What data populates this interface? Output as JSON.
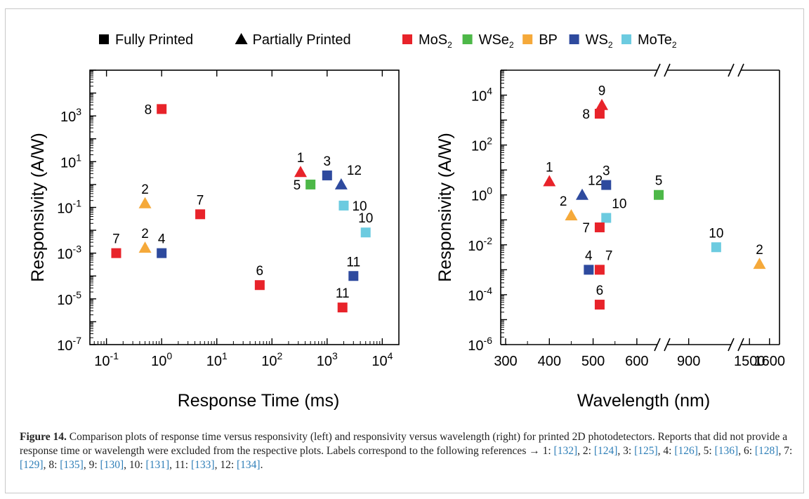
{
  "legend": {
    "items": [
      {
        "label": "Fully Printed",
        "shape": "square",
        "color": "#000000"
      },
      {
        "label": "Partially Printed",
        "shape": "triangle",
        "color": "#000000"
      },
      {
        "label": "MoS",
        "sub": "2",
        "shape": "square",
        "color": "#e8232a"
      },
      {
        "label": "WSe",
        "sub": "2",
        "shape": "square",
        "color": "#4db848"
      },
      {
        "label": "BP",
        "sub": "",
        "shape": "square",
        "color": "#f5a93a"
      },
      {
        "label": "WS",
        "sub": "2",
        "shape": "square",
        "color": "#2e4a9e"
      },
      {
        "label": "MoTe",
        "sub": "2",
        "shape": "square",
        "color": "#6ccbe0"
      }
    ]
  },
  "colors": {
    "MoS2": "#e8232a",
    "WSe2": "#4db848",
    "BP": "#f5a93a",
    "WS2": "#2e4a9e",
    "MoTe2": "#6ccbe0"
  },
  "chart_data": [
    {
      "type": "scatter",
      "xlabel": "Response Time (ms)",
      "ylabel": "Responsivity (A/W)",
      "xscale": "log",
      "yscale": "log",
      "xlim": [
        0.05,
        20000
      ],
      "ylim": [
        1e-07,
        100000.0
      ],
      "x_ticks": [
        {
          "v": 0.1,
          "base": "10",
          "exp": "-1"
        },
        {
          "v": 1,
          "base": "10",
          "exp": "0"
        },
        {
          "v": 10,
          "base": "10",
          "exp": "1"
        },
        {
          "v": 100,
          "base": "10",
          "exp": "2"
        },
        {
          "v": 1000,
          "base": "10",
          "exp": "3"
        },
        {
          "v": 10000,
          "base": "10",
          "exp": "4"
        }
      ],
      "y_ticks": [
        {
          "v": 1e-07,
          "base": "10",
          "exp": "-7"
        },
        {
          "v": 1e-05,
          "base": "10",
          "exp": "-5"
        },
        {
          "v": 0.001,
          "base": "10",
          "exp": "-3"
        },
        {
          "v": 0.1,
          "base": "10",
          "exp": "-1"
        },
        {
          "v": 10,
          "base": "10",
          "exp": "1"
        },
        {
          "v": 1000,
          "base": "10",
          "exp": "3"
        }
      ],
      "points": [
        {
          "x": 1,
          "y": 2000,
          "material": "MoS2",
          "marker": "square",
          "label": "8",
          "lpos": "left"
        },
        {
          "x": 0.15,
          "y": 0.001,
          "material": "MoS2",
          "marker": "square",
          "label": "7",
          "lpos": "above"
        },
        {
          "x": 0.5,
          "y": 0.15,
          "material": "BP",
          "marker": "triangle",
          "label": "2",
          "lpos": "above"
        },
        {
          "x": 0.5,
          "y": 0.0017,
          "material": "BP",
          "marker": "triangle",
          "label": "2",
          "lpos": "above"
        },
        {
          "x": 1,
          "y": 0.001,
          "material": "WS2",
          "marker": "square",
          "label": "4",
          "lpos": "above"
        },
        {
          "x": 5,
          "y": 0.05,
          "material": "MoS2",
          "marker": "square",
          "label": "7",
          "lpos": "above"
        },
        {
          "x": 60,
          "y": 4e-05,
          "material": "MoS2",
          "marker": "square",
          "label": "6",
          "lpos": "above"
        },
        {
          "x": 330,
          "y": 3.5,
          "material": "MoS2",
          "marker": "triangle",
          "label": "1",
          "lpos": "above"
        },
        {
          "x": 500,
          "y": 1,
          "material": "WSe2",
          "marker": "square",
          "label": "5",
          "lpos": "left"
        },
        {
          "x": 1000,
          "y": 2.5,
          "material": "WS2",
          "marker": "square",
          "label": "3",
          "lpos": "above"
        },
        {
          "x": 1800,
          "y": 1,
          "material": "WS2",
          "marker": "triangle",
          "label": "12",
          "lpos": "aboveright"
        },
        {
          "x": 2000,
          "y": 0.12,
          "material": "MoTe2",
          "marker": "square",
          "label": "10",
          "lpos": "right"
        },
        {
          "x": 5000,
          "y": 0.008,
          "material": "MoTe2",
          "marker": "square",
          "label": "10",
          "lpos": "above"
        },
        {
          "x": 3000,
          "y": 0.0001,
          "material": "WS2",
          "marker": "square",
          "label": "11",
          "lpos": "above"
        },
        {
          "x": 1900,
          "y": 4.2e-06,
          "material": "MoS2",
          "marker": "square",
          "label": "11",
          "lpos": "above"
        }
      ]
    },
    {
      "type": "scatter",
      "xlabel": "Wavelength (nm)",
      "ylabel": "Responsivity (A/W)",
      "xscale": "broken-linear",
      "yscale": "log",
      "ylim": [
        1e-06,
        100000.0
      ],
      "x_segments": [
        {
          "from": 300,
          "to": 650,
          "tick_values": [
            300,
            400,
            500,
            600
          ]
        },
        {
          "from": 850,
          "to": 1000,
          "tick_values": [
            900
          ]
        },
        {
          "from": 1450,
          "to": 1650,
          "tick_values": [
            1500,
            1600
          ]
        }
      ],
      "x_ticks": [
        "300",
        "400",
        "500",
        "600",
        "900",
        "1500",
        "1600"
      ],
      "y_ticks": [
        {
          "v": 1e-06,
          "base": "10",
          "exp": "-6"
        },
        {
          "v": 0.0001,
          "base": "10",
          "exp": "-4"
        },
        {
          "v": 0.01,
          "base": "10",
          "exp": "-2"
        },
        {
          "v": 1,
          "base": "10",
          "exp": "0"
        },
        {
          "v": 100,
          "base": "10",
          "exp": "2"
        },
        {
          "v": 10000,
          "base": "10",
          "exp": "4"
        }
      ],
      "points": [
        {
          "x": 400,
          "y": 3.5,
          "material": "MoS2",
          "marker": "triangle",
          "label": "1",
          "lpos": "above"
        },
        {
          "x": 520,
          "y": 4000,
          "material": "MoS2",
          "marker": "triangle",
          "label": "9",
          "lpos": "above"
        },
        {
          "x": 515,
          "y": 1800,
          "material": "MoS2",
          "marker": "square",
          "label": "8",
          "lpos": "left"
        },
        {
          "x": 475,
          "y": 1,
          "material": "WS2",
          "marker": "triangle",
          "label": "12",
          "lpos": "aboveright"
        },
        {
          "x": 530,
          "y": 2.5,
          "material": "WS2",
          "marker": "square",
          "label": "3",
          "lpos": "above"
        },
        {
          "x": 450,
          "y": 0.15,
          "material": "BP",
          "marker": "triangle",
          "label": "2",
          "lpos": "aboveleft"
        },
        {
          "x": 530,
          "y": 0.12,
          "material": "MoTe2",
          "marker": "square",
          "label": "10",
          "lpos": "aboveright"
        },
        {
          "x": 515,
          "y": 0.05,
          "material": "MoS2",
          "marker": "square",
          "label": "7",
          "lpos": "left"
        },
        {
          "x": 650,
          "y": 1,
          "material": "WSe2",
          "marker": "square",
          "label": "5",
          "lpos": "above"
        },
        {
          "x": 960,
          "y": 0.008,
          "material": "MoTe2",
          "marker": "square",
          "label": "10",
          "lpos": "above"
        },
        {
          "x": 1550,
          "y": 0.0017,
          "material": "BP",
          "marker": "triangle",
          "label": "2",
          "lpos": "above"
        },
        {
          "x": 490,
          "y": 0.001,
          "material": "WS2",
          "marker": "square",
          "label": "4",
          "lpos": "above"
        },
        {
          "x": 515,
          "y": 0.001,
          "material": "MoS2",
          "marker": "square",
          "label": "7",
          "lpos": "aboveright"
        },
        {
          "x": 515,
          "y": 4e-05,
          "material": "MoS2",
          "marker": "square",
          "label": "6",
          "lpos": "above"
        }
      ]
    }
  ],
  "caption": {
    "label": "Figure 14.",
    "text": " Comparison plots of response time versus responsivity (left) and responsivity versus wavelength (right) for printed 2D photodetectors. Reports that did not provide a response time or wavelength were excluded from the respective plots. Labels correspond to the following references → ",
    "refs": [
      {
        "n": "1",
        "ref": "[132]"
      },
      {
        "n": "2",
        "ref": "[124]"
      },
      {
        "n": "3",
        "ref": "[125]"
      },
      {
        "n": "4",
        "ref": "[126]"
      },
      {
        "n": "5",
        "ref": "[136]"
      },
      {
        "n": "6",
        "ref": "[128]"
      },
      {
        "n": "7",
        "ref": "[129]"
      },
      {
        "n": "8",
        "ref": "[135]"
      },
      {
        "n": "9",
        "ref": "[130]"
      },
      {
        "n": "10",
        "ref": "[131]"
      },
      {
        "n": "11",
        "ref": "[133]"
      },
      {
        "n": "12",
        "ref": "[134]"
      }
    ]
  }
}
